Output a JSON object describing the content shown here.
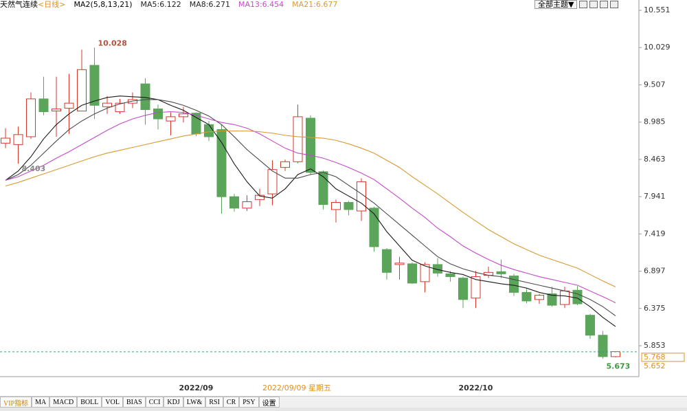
{
  "header": {
    "title": "天然气连续",
    "period": "<日线>",
    "indicator": "MA2(5,8,13,21)",
    "theme_button": "全部主题▼"
  },
  "chart_data": {
    "type": "candlestick",
    "categories": [
      null,
      null,
      null,
      null,
      null,
      null,
      null,
      null,
      null,
      null,
      null,
      null,
      null,
      null,
      null,
      "2022/09",
      null,
      null,
      null,
      null,
      null,
      null,
      null,
      null,
      null,
      null,
      null,
      null,
      null,
      null,
      null,
      null,
      null,
      null,
      null,
      null,
      null,
      "2022/10",
      null,
      null,
      null,
      null,
      null,
      null,
      null,
      null,
      null,
      null,
      null
    ],
    "open": [
      8.69,
      8.67,
      8.78,
      9.31,
      9.14,
      9.18,
      9.14,
      9.78,
      9.2,
      9.13,
      9.25,
      9.52,
      9.17,
      9.0,
      9.06,
      9.11,
      8.95,
      8.88,
      7.94,
      7.78,
      7.9,
      7.98,
      8.35,
      8.43,
      9.04,
      8.29,
      7.76,
      7.86,
      7.74,
      7.78,
      7.2,
      6.99,
      7.0,
      6.75,
      6.99,
      6.86,
      6.8,
      6.52,
      6.84,
      6.89,
      6.83,
      6.6,
      6.5,
      6.58,
      6.43,
      6.63,
      6.28,
      6.0,
      5.7
    ],
    "high": [
      8.9,
      8.92,
      9.4,
      9.62,
      9.62,
      9.66,
      10.0,
      10.028,
      9.35,
      9.31,
      9.4,
      9.6,
      9.23,
      9.12,
      9.2,
      9.12,
      9.0,
      8.95,
      7.98,
      7.96,
      8.05,
      8.45,
      8.46,
      9.23,
      9.08,
      8.31,
      7.9,
      7.88,
      8.2,
      7.8,
      7.22,
      7.1,
      7.02,
      7.02,
      7.08,
      6.9,
      6.82,
      6.9,
      6.96,
      7.06,
      6.86,
      6.65,
      6.58,
      6.68,
      6.68,
      6.69,
      6.3,
      6.06,
      5.77
    ],
    "low": [
      8.62,
      8.403,
      8.75,
      9.08,
      8.78,
      8.82,
      9.14,
      9.03,
      9.1,
      9.1,
      9.18,
      8.95,
      8.88,
      8.8,
      8.98,
      8.79,
      8.72,
      7.7,
      7.73,
      7.74,
      7.81,
      7.82,
      8.3,
      8.41,
      8.25,
      7.76,
      7.58,
      7.68,
      7.6,
      7.17,
      6.78,
      6.78,
      6.72,
      6.6,
      6.82,
      6.75,
      6.38,
      6.38,
      6.8,
      6.8,
      6.55,
      6.45,
      6.44,
      6.4,
      6.38,
      6.42,
      5.95,
      5.673,
      5.69
    ],
    "close": [
      8.76,
      8.81,
      9.31,
      9.13,
      9.17,
      9.25,
      9.72,
      9.22,
      9.25,
      9.25,
      9.3,
      9.16,
      9.03,
      9.06,
      9.1,
      8.82,
      8.78,
      7.94,
      7.78,
      7.87,
      7.96,
      8.32,
      8.43,
      9.06,
      8.28,
      7.83,
      7.86,
      7.76,
      8.15,
      7.24,
      6.88,
      7.01,
      6.73,
      6.99,
      6.87,
      6.82,
      6.5,
      6.82,
      6.88,
      6.86,
      6.6,
      6.48,
      6.56,
      6.42,
      6.62,
      6.44,
      6.0,
      5.7,
      5.77
    ],
    "up_color": "#d9362b",
    "down_color": "#5ba55b",
    "series": [
      {
        "name": "MA5:6.122",
        "color": "#1a1a1a",
        "values": [
          8.17,
          8.3,
          8.5,
          8.75,
          8.95,
          9.1,
          9.22,
          9.28,
          9.33,
          9.35,
          9.34,
          9.33,
          9.3,
          9.22,
          9.15,
          9.05,
          8.95,
          8.7,
          8.4,
          8.15,
          7.95,
          7.92,
          8.05,
          8.25,
          8.33,
          8.22,
          8.05,
          7.95,
          7.85,
          7.7,
          7.45,
          7.25,
          7.05,
          6.97,
          6.92,
          6.88,
          6.85,
          6.78,
          6.75,
          6.72,
          6.7,
          6.66,
          6.6,
          6.56,
          6.55,
          6.52,
          6.4,
          6.25,
          6.122
        ]
      },
      {
        "name": "MA8:6.271",
        "color": "#4a4a4a",
        "values": [
          8.17,
          8.25,
          8.38,
          8.55,
          8.72,
          8.88,
          9.0,
          9.1,
          9.18,
          9.24,
          9.28,
          9.3,
          9.3,
          9.27,
          9.22,
          9.15,
          9.07,
          8.95,
          8.78,
          8.6,
          8.45,
          8.3,
          8.2,
          8.2,
          8.25,
          8.28,
          8.22,
          8.1,
          7.98,
          7.85,
          7.7,
          7.55,
          7.4,
          7.25,
          7.1,
          7.0,
          6.93,
          6.88,
          6.84,
          6.82,
          6.78,
          6.74,
          6.7,
          6.66,
          6.62,
          6.58,
          6.5,
          6.4,
          6.271
        ]
      },
      {
        "name": "MA13:6.454",
        "color": "#c44ac8",
        "values": [
          8.17,
          8.22,
          8.3,
          8.38,
          8.48,
          8.57,
          8.67,
          8.77,
          8.87,
          8.96,
          9.03,
          9.08,
          9.12,
          9.13,
          9.12,
          9.08,
          9.03,
          8.98,
          8.95,
          8.9,
          8.82,
          8.72,
          8.62,
          8.55,
          8.52,
          8.48,
          8.42,
          8.35,
          8.27,
          8.18,
          8.05,
          7.92,
          7.78,
          7.65,
          7.5,
          7.38,
          7.25,
          7.15,
          7.06,
          6.98,
          6.92,
          6.87,
          6.82,
          6.78,
          6.74,
          6.7,
          6.62,
          6.54,
          6.454
        ]
      },
      {
        "name": "MA21:6.677",
        "color": "#d89a30",
        "values": [
          8.09,
          8.14,
          8.2,
          8.26,
          8.32,
          8.38,
          8.44,
          8.5,
          8.55,
          8.59,
          8.63,
          8.67,
          8.71,
          8.75,
          8.79,
          8.82,
          8.85,
          8.86,
          8.86,
          8.86,
          8.85,
          8.83,
          8.8,
          8.78,
          8.77,
          8.76,
          8.73,
          8.68,
          8.62,
          8.55,
          8.45,
          8.35,
          8.22,
          8.1,
          7.98,
          7.85,
          7.72,
          7.6,
          7.48,
          7.38,
          7.28,
          7.2,
          7.12,
          7.06,
          7.0,
          6.94,
          6.85,
          6.76,
          6.677
        ]
      }
    ],
    "ylim": [
      5.42,
      10.695
    ],
    "yticks": [
      10.551,
      10.029,
      9.507,
      8.985,
      8.463,
      7.941,
      7.419,
      6.897,
      6.375,
      5.853
    ],
    "extreme_labels": [
      10.028,
      8.403,
      5.673
    ],
    "price_labels": [
      5.768,
      5.652
    ],
    "cursor_date": "2022/09/09 星期五"
  },
  "tabs": [
    "VIP指标",
    "MA",
    "MACD",
    "BOLL",
    "VOL",
    "BIAS",
    "CCI",
    "KDJ",
    "LW&",
    "RSI",
    "CR",
    "PSY",
    "设置"
  ]
}
